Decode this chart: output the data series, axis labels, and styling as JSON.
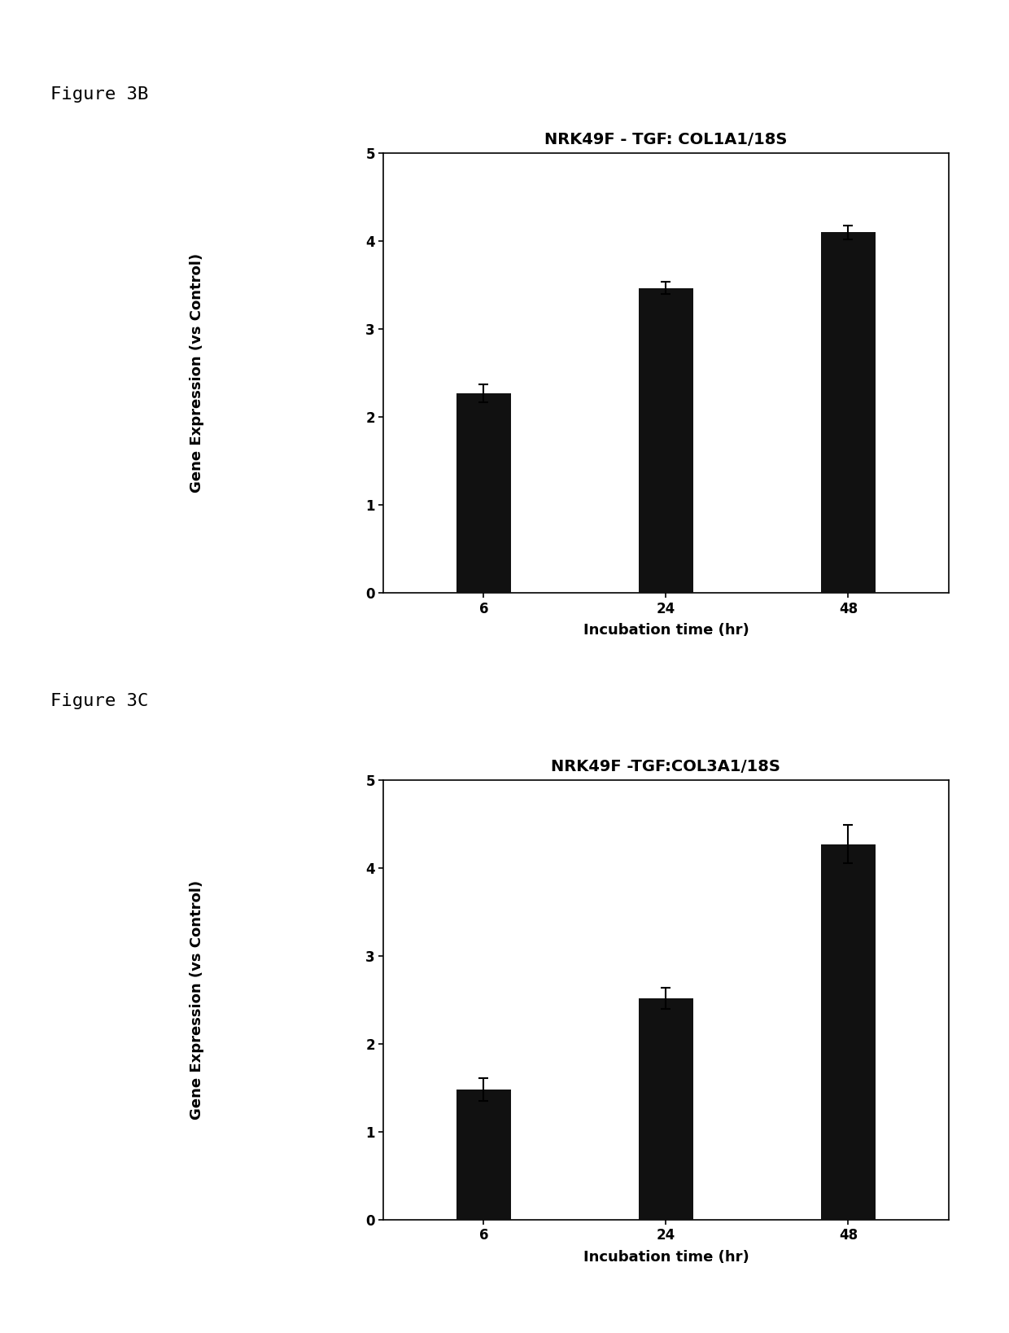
{
  "fig3b": {
    "title": "NRK49F - TGF: COL1A1/18S",
    "categories": [
      "6",
      "24",
      "48"
    ],
    "values": [
      2.27,
      3.47,
      4.1
    ],
    "errors": [
      0.1,
      0.07,
      0.08
    ],
    "ylabel": "Gene Expression (vs Control)",
    "xlabel": "Incubation time (hr)",
    "ylim": [
      0,
      5
    ],
    "yticks": [
      0,
      1,
      2,
      3,
      4,
      5
    ],
    "bar_color": "#111111",
    "figure_label": "Figure 3B"
  },
  "fig3c": {
    "title": "NRK49F -TGF:COL3A1/18S",
    "categories": [
      "6",
      "24",
      "48"
    ],
    "values": [
      1.48,
      2.52,
      4.27
    ],
    "errors": [
      0.13,
      0.12,
      0.22
    ],
    "ylabel": "Gene Expression (vs Control)",
    "xlabel": "Incubation time (hr)",
    "ylim": [
      0,
      5
    ],
    "yticks": [
      0,
      1,
      2,
      3,
      4,
      5
    ],
    "bar_color": "#111111",
    "figure_label": "Figure 3C"
  },
  "background_color": "#ffffff",
  "panel_bg": "#ffffff",
  "title_fontsize": 14,
  "axis_label_fontsize": 13,
  "tick_fontsize": 12,
  "figure_label_fontsize": 16,
  "bar_width": 0.3
}
